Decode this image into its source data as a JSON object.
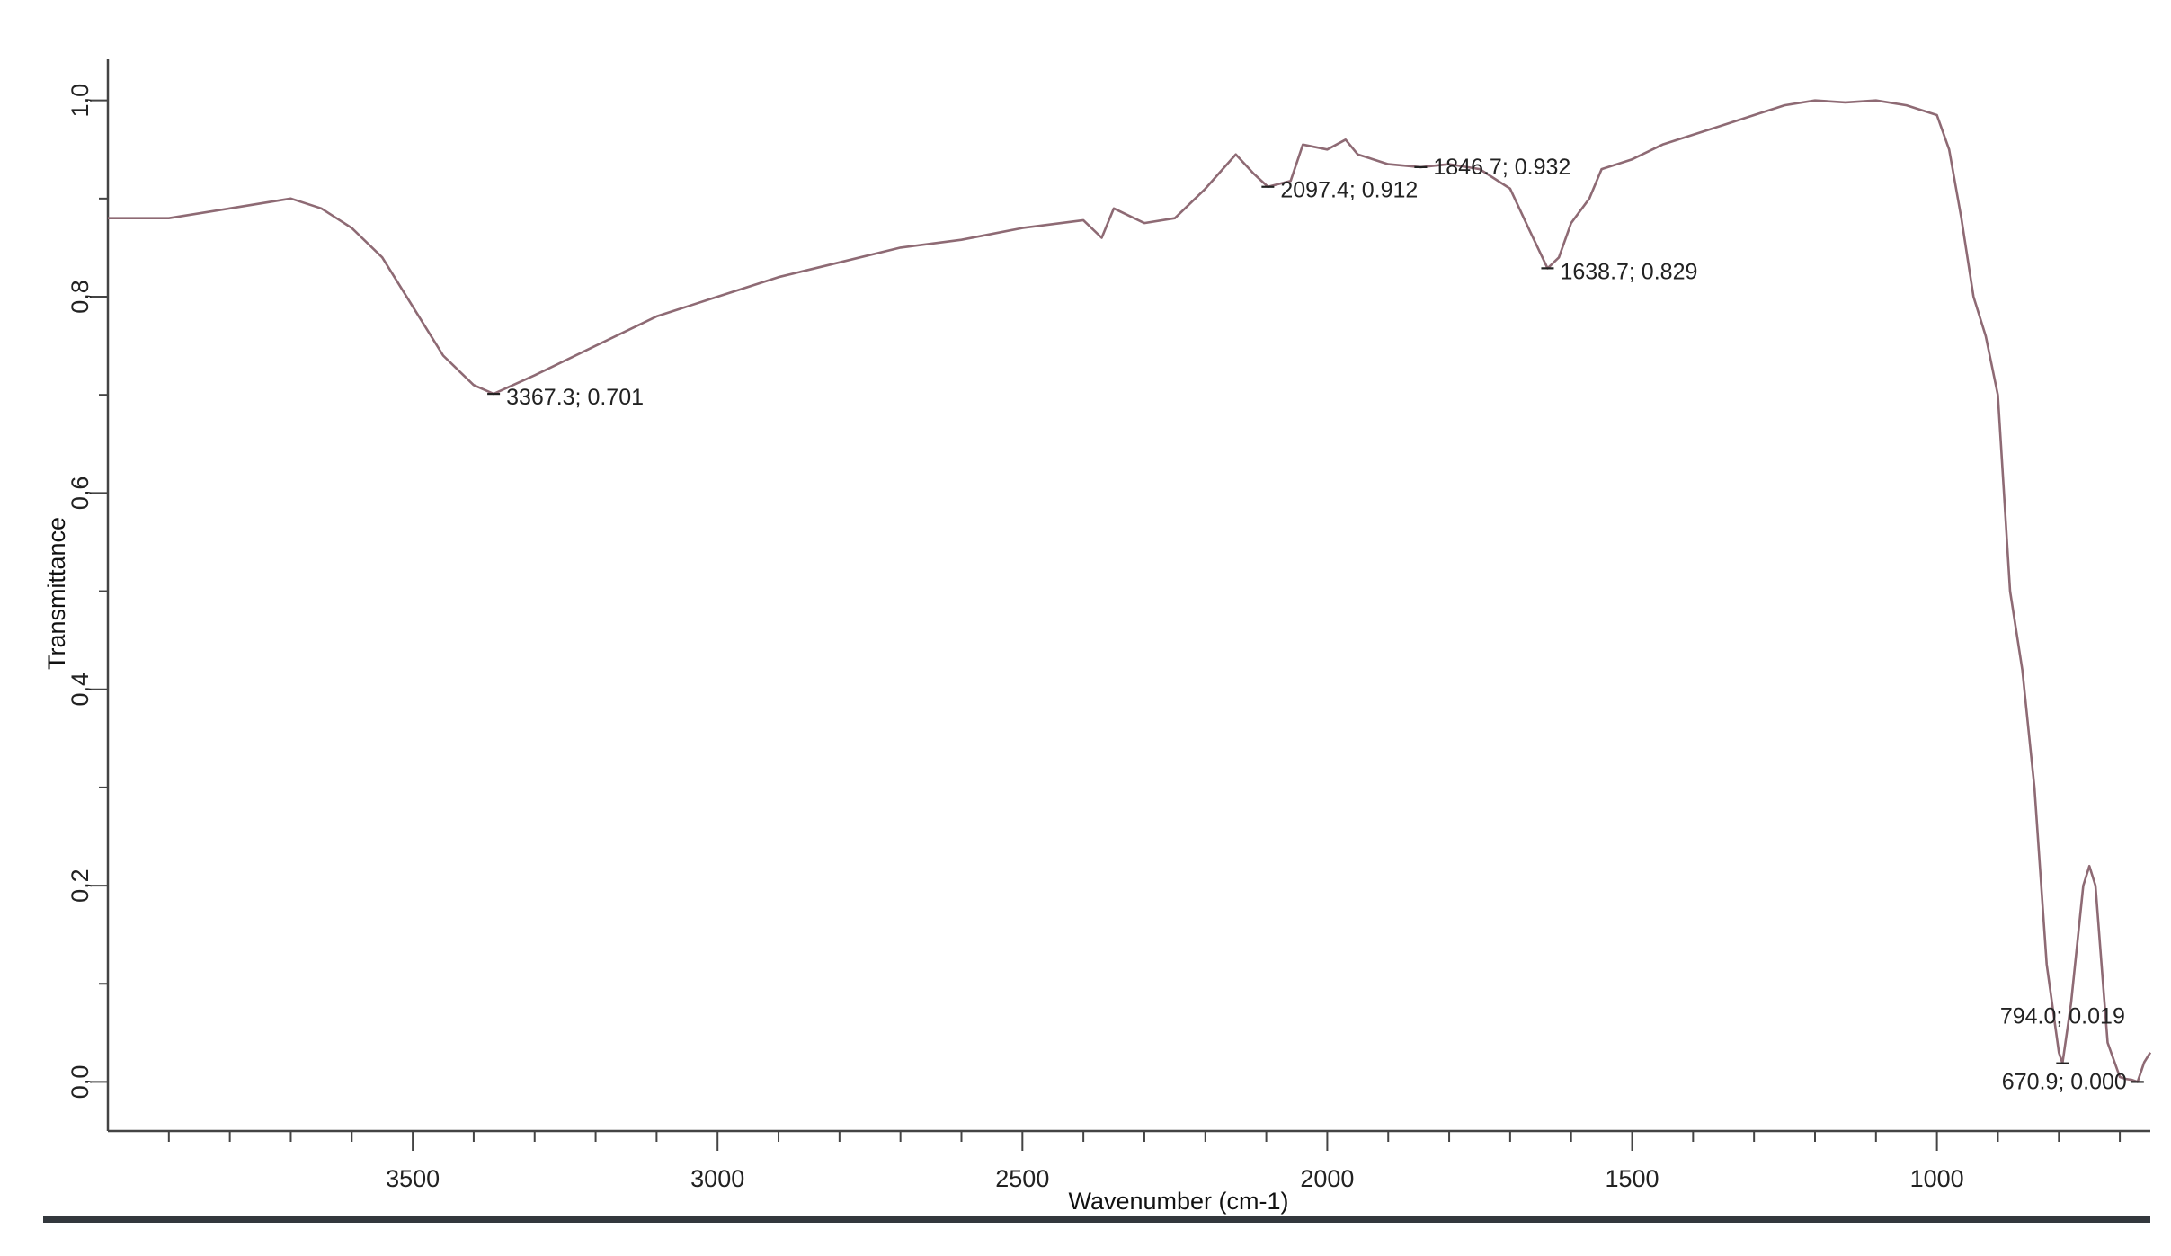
{
  "chart_data": {
    "type": "line",
    "title": "",
    "xlabel": "Wavenumber (cm-1)",
    "ylabel": "Transmittance",
    "xlim": [
      4000,
      650
    ],
    "ylim": [
      -0.05,
      1.04
    ],
    "x_reversed": true,
    "grid": false,
    "line_color": "#8e6a74",
    "x_ticks": [
      3500,
      3000,
      2500,
      2000,
      1500,
      1000
    ],
    "y_ticks": [
      0.0,
      0.2,
      0.4,
      0.6,
      0.8,
      1.0
    ],
    "y_tick_labels": [
      "0,0",
      "0,2",
      "0,4",
      "0,6",
      "0,8",
      "1,0"
    ],
    "series": [
      {
        "x": [
          4000,
          3900,
          3800,
          3700,
          3650,
          3600,
          3550,
          3500,
          3450,
          3400,
          3367.3,
          3300,
          3200,
          3100,
          3000,
          2900,
          2800,
          2700,
          2600,
          2500,
          2400,
          2370,
          2350,
          2300,
          2250,
          2200,
          2150,
          2120,
          2097.4,
          2060,
          2040,
          2000,
          1970,
          1950,
          1900,
          1846.7,
          1800,
          1750,
          1700,
          1670,
          1638.7,
          1620,
          1600,
          1570,
          1550,
          1500,
          1450,
          1400,
          1350,
          1300,
          1250,
          1200,
          1150,
          1100,
          1050,
          1000,
          980,
          960,
          940,
          920,
          900,
          880,
          860,
          840,
          820,
          800,
          794.0,
          780,
          760,
          750,
          740,
          730,
          720,
          700,
          690,
          680,
          670.9,
          660,
          650
        ],
        "y": [
          0.88,
          0.88,
          0.89,
          0.9,
          0.89,
          0.87,
          0.84,
          0.79,
          0.74,
          0.71,
          0.701,
          0.72,
          0.75,
          0.78,
          0.8,
          0.82,
          0.835,
          0.85,
          0.858,
          0.87,
          0.878,
          0.86,
          0.89,
          0.875,
          0.88,
          0.91,
          0.945,
          0.925,
          0.912,
          0.918,
          0.955,
          0.95,
          0.96,
          0.945,
          0.935,
          0.932,
          0.935,
          0.93,
          0.91,
          0.87,
          0.829,
          0.84,
          0.875,
          0.9,
          0.93,
          0.94,
          0.955,
          0.965,
          0.975,
          0.985,
          0.995,
          1.0,
          0.998,
          1.0,
          0.995,
          0.985,
          0.95,
          0.88,
          0.8,
          0.76,
          0.7,
          0.5,
          0.42,
          0.3,
          0.12,
          0.03,
          0.019,
          0.08,
          0.2,
          0.22,
          0.2,
          0.12,
          0.04,
          0.005,
          0.003,
          0.002,
          0.0,
          0.02,
          0.03
        ]
      }
    ],
    "annotations": [
      {
        "x": 3367.3,
        "y": 0.701,
        "label": "3367.3; 0.701"
      },
      {
        "x": 2097.4,
        "y": 0.912,
        "label": "2097.4; 0.912"
      },
      {
        "x": 1846.7,
        "y": 0.932,
        "label": "1846.7; 0.932"
      },
      {
        "x": 1638.7,
        "y": 0.829,
        "label": "1638.7; 0.829"
      },
      {
        "x": 794.0,
        "y": 0.019,
        "label": "794.0; 0.019"
      },
      {
        "x": 670.9,
        "y": 0.0,
        "label": "670.9; 0.000"
      }
    ]
  }
}
